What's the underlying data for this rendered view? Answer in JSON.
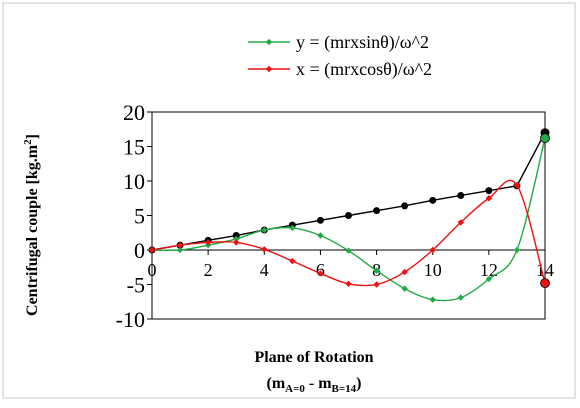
{
  "chart_data": {
    "type": "line",
    "xlabel": "Plane of Rotation",
    "xlabel_sub": {
      "open": "(m",
      "a_sub": "A=0",
      "mid": " - m",
      "b_sub": "B=14",
      "close": ")"
    },
    "ylabel": {
      "main": "Centrifugal couple [kg.m",
      "sup": "2",
      "close": "]"
    },
    "xlim": [
      0,
      14
    ],
    "ylim": [
      -10,
      20
    ],
    "x_ticks": [
      "0",
      "2",
      "4",
      "6",
      "8",
      "10",
      "12",
      "14"
    ],
    "y_ticks": [
      "-10",
      "-5",
      "0",
      "5",
      "10",
      "15",
      "20"
    ],
    "legend_position": "top-right",
    "grid": false,
    "series": [
      {
        "key": "magnitude",
        "name": "",
        "color": "#000000",
        "marker": "circle",
        "x": [
          0,
          1,
          2,
          3,
          4,
          5,
          6,
          7,
          8,
          9,
          10,
          11,
          12,
          13,
          14
        ],
        "y": [
          0,
          0.7,
          1.4,
          2.1,
          2.9,
          3.6,
          4.3,
          5.0,
          5.7,
          6.4,
          7.2,
          7.9,
          8.6,
          9.3,
          17
        ]
      },
      {
        "key": "y_component",
        "name": "y = (mrxsinθ)/ω^2",
        "color": "#22aa44",
        "marker": "diamond",
        "x": [
          0,
          1,
          2,
          3,
          4,
          5,
          6,
          7,
          8,
          9,
          10,
          11,
          12,
          13,
          14
        ],
        "y": [
          0,
          0,
          0.7,
          1.6,
          2.9,
          3.2,
          2.1,
          -0.1,
          -3.0,
          -5.6,
          -7.2,
          -6.9,
          -4.2,
          0,
          16.2
        ]
      },
      {
        "key": "x_component",
        "name": "x = (mrxcosθ)/ω^2",
        "color": "#ee1111",
        "marker": "diamond",
        "x": [
          0,
          1,
          2,
          3,
          4,
          5,
          6,
          7,
          8,
          9,
          10,
          11,
          12,
          13,
          14
        ],
        "y": [
          0,
          0.7,
          1.1,
          1.1,
          0.1,
          -1.6,
          -3.4,
          -4.9,
          -5.0,
          -3.2,
          0,
          4.0,
          7.5,
          9.4,
          -4.8
        ]
      }
    ]
  }
}
